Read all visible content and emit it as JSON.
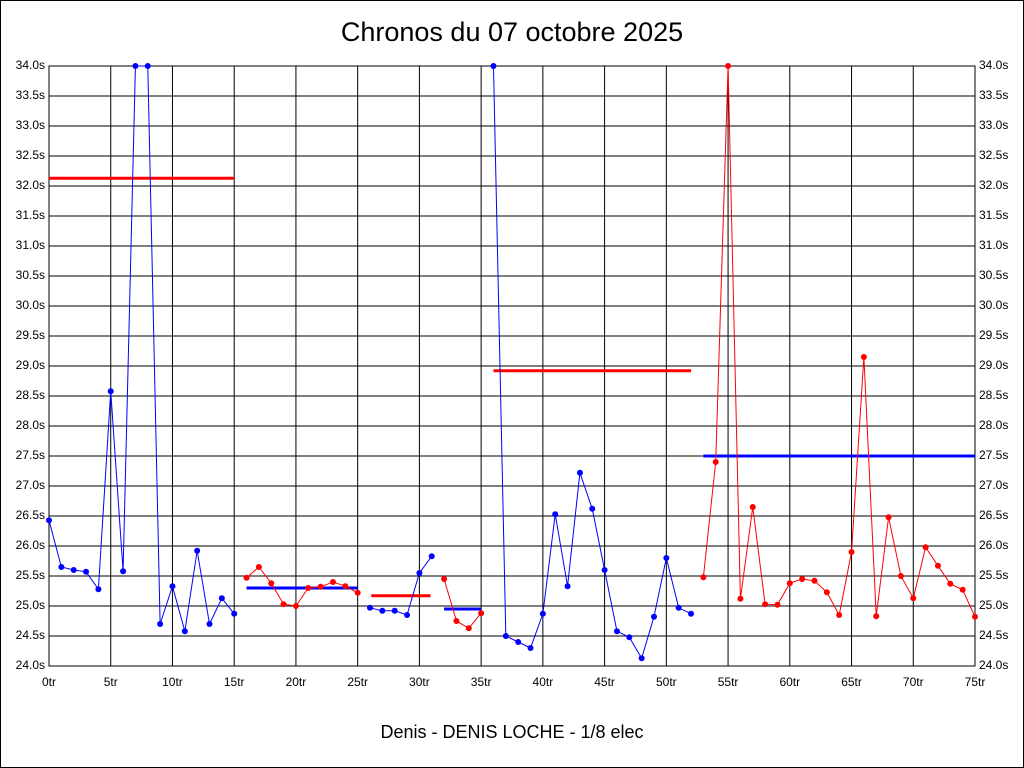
{
  "chart_data": {
    "type": "line",
    "title": "Chronos du 07 octobre 2025",
    "xlabel": "Denis - DENIS LOCHE - 1/8 elec",
    "xlim": [
      0,
      75
    ],
    "ylim": [
      24.0,
      34.0
    ],
    "xticks": [
      {
        "value": 0,
        "label": "0tr"
      },
      {
        "value": 5,
        "label": "5tr"
      },
      {
        "value": 10,
        "label": "10tr"
      },
      {
        "value": 15,
        "label": "15tr"
      },
      {
        "value": 20,
        "label": "20tr"
      },
      {
        "value": 25,
        "label": "25tr"
      },
      {
        "value": 30,
        "label": "30tr"
      },
      {
        "value": 35,
        "label": "35tr"
      },
      {
        "value": 40,
        "label": "40tr"
      },
      {
        "value": 45,
        "label": "45tr"
      },
      {
        "value": 50,
        "label": "50tr"
      },
      {
        "value": 55,
        "label": "55tr"
      },
      {
        "value": 60,
        "label": "60tr"
      },
      {
        "value": 65,
        "label": "65tr"
      },
      {
        "value": 70,
        "label": "70tr"
      },
      {
        "value": 75,
        "label": "75tr"
      }
    ],
    "yticks": [
      {
        "value": 24.0,
        "label": "24.0s"
      },
      {
        "value": 24.5,
        "label": "24.5s"
      },
      {
        "value": 25.0,
        "label": "25.0s"
      },
      {
        "value": 25.5,
        "label": "25.5s"
      },
      {
        "value": 26.0,
        "label": "26.0s"
      },
      {
        "value": 26.5,
        "label": "26.5s"
      },
      {
        "value": 27.0,
        "label": "27.0s"
      },
      {
        "value": 27.5,
        "label": "27.5s"
      },
      {
        "value": 28.0,
        "label": "28.0s"
      },
      {
        "value": 28.5,
        "label": "28.5s"
      },
      {
        "value": 29.0,
        "label": "29.0s"
      },
      {
        "value": 29.5,
        "label": "29.5s"
      },
      {
        "value": 30.0,
        "label": "30.0s"
      },
      {
        "value": 30.5,
        "label": "30.5s"
      },
      {
        "value": 31.0,
        "label": "31.0s"
      },
      {
        "value": 31.5,
        "label": "31.5s"
      },
      {
        "value": 32.0,
        "label": "32.0s"
      },
      {
        "value": 32.5,
        "label": "32.5s"
      },
      {
        "value": 33.0,
        "label": "33.0s"
      },
      {
        "value": 33.5,
        "label": "33.5s"
      },
      {
        "value": 34.0,
        "label": "34.0s"
      }
    ],
    "grid": true,
    "series": [
      {
        "color": "#0000ff",
        "x": [
          0,
          1,
          2,
          3,
          4,
          5,
          6,
          7,
          8,
          9,
          10,
          11,
          12,
          13,
          14,
          15
        ],
        "values": [
          26.43,
          25.65,
          25.6,
          25.57,
          25.28,
          28.58,
          25.58,
          34.0,
          34.0,
          24.7,
          25.33,
          24.58,
          25.92,
          24.7,
          25.13,
          24.87
        ]
      },
      {
        "color": "#ff0000",
        "x": [
          16,
          17,
          18,
          19,
          20,
          21,
          22,
          23,
          24,
          25
        ],
        "values": [
          25.47,
          25.65,
          25.38,
          25.03,
          25.0,
          25.3,
          25.32,
          25.4,
          25.33,
          25.22
        ]
      },
      {
        "color": "#0000ff",
        "x": [
          26,
          27,
          28,
          29,
          30,
          31
        ],
        "values": [
          24.97,
          24.92,
          24.92,
          24.85,
          25.55,
          25.83
        ]
      },
      {
        "color": "#ff0000",
        "x": [
          32,
          33,
          34,
          35
        ],
        "values": [
          25.45,
          24.75,
          24.63,
          24.88
        ]
      },
      {
        "color": "#0000ff",
        "x": [
          36,
          37,
          38,
          39,
          40,
          41,
          42,
          43,
          44,
          45,
          46,
          47,
          48,
          49,
          50,
          51,
          52
        ],
        "values": [
          34.0,
          24.5,
          24.4,
          24.3,
          24.87,
          26.53,
          25.33,
          27.22,
          26.62,
          25.6,
          24.58,
          24.48,
          24.13,
          24.82,
          25.8,
          24.97,
          24.87
        ]
      },
      {
        "color": "#ff0000",
        "x": [
          53,
          54,
          55,
          56,
          57,
          58,
          59,
          60,
          61,
          62,
          63,
          64,
          65,
          66,
          67,
          68,
          69,
          70,
          71,
          72,
          73,
          74,
          75
        ],
        "values": [
          25.48,
          27.4,
          34.0,
          25.12,
          26.65,
          25.03,
          25.02,
          25.38,
          25.45,
          25.42,
          25.23,
          24.85,
          25.9,
          29.15,
          24.83,
          26.48,
          25.5,
          25.13,
          25.98,
          25.67,
          25.37,
          25.27,
          24.82
        ]
      }
    ],
    "averages": [
      {
        "color": "#ff0000",
        "x": [
          0,
          15
        ],
        "value": 32.13
      },
      {
        "color": "#0000ff",
        "x": [
          16,
          25
        ],
        "value": 25.3
      },
      {
        "color": "#ff0000",
        "x": [
          26.1,
          30.9
        ],
        "value": 25.17
      },
      {
        "color": "#0000ff",
        "x": [
          32,
          35
        ],
        "value": 24.95
      },
      {
        "color": "#ff0000",
        "x": [
          36,
          52
        ],
        "value": 28.92
      },
      {
        "color": "#0000ff",
        "x": [
          53,
          75
        ],
        "value": 27.5
      }
    ]
  }
}
